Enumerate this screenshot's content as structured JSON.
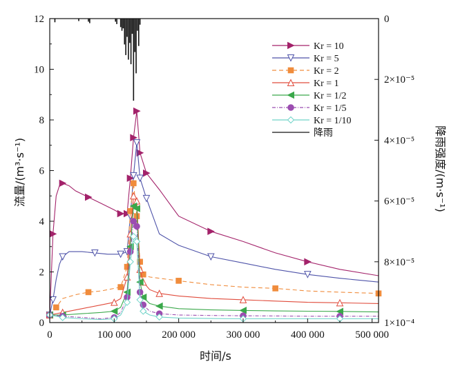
{
  "chart_data": {
    "type": "line",
    "title": "",
    "xlabel": "时间/s",
    "ylabel_left": "流量/(m³·s⁻¹)",
    "ylabel_right": "降雨强度/(m·s⁻¹)",
    "xlim": [
      0,
      510000
    ],
    "ylim_left": [
      0,
      12
    ],
    "ylim_right_inverted": [
      0,
      0.0001
    ],
    "x_tick_labels": [
      "0",
      "100 000",
      "200 000",
      "300 000",
      "400 000",
      "500 000"
    ],
    "y_left_tick_labels": [
      "0",
      "2",
      "4",
      "6",
      "8",
      "10",
      "12"
    ],
    "y_right_tick_labels": [
      "0",
      "2×10⁻⁵",
      "4×10⁻⁵",
      "6×10⁻⁵",
      "8×10⁻⁵",
      "1×10⁻⁴"
    ],
    "legend_position": "top-right",
    "grid": false,
    "series": [
      {
        "name": "Kr = 10",
        "color": "#a3226a",
        "dash": "none",
        "marker": "triangle-right",
        "x": [
          0,
          5000,
          10000,
          15000,
          20000,
          30000,
          40000,
          60000,
          80000,
          100000,
          110000,
          120000,
          125000,
          130000,
          135000,
          140000,
          150000,
          170000,
          200000,
          250000,
          300000,
          350000,
          400000,
          450000,
          510000
        ],
        "y": [
          0.3,
          3.5,
          5.0,
          5.4,
          5.5,
          5.4,
          5.2,
          4.95,
          4.7,
          4.45,
          4.3,
          4.3,
          5.7,
          7.3,
          8.35,
          6.7,
          5.9,
          5.25,
          4.2,
          3.6,
          3.2,
          2.75,
          2.4,
          2.1,
          1.85
        ]
      },
      {
        "name": "Kr = 5",
        "color": "#4d52a8",
        "dash": "none",
        "marker": "triangle-down-open",
        "x": [
          0,
          5000,
          10000,
          15000,
          20000,
          30000,
          50000,
          70000,
          90000,
          100000,
          110000,
          120000,
          125000,
          130000,
          135000,
          140000,
          150000,
          170000,
          200000,
          250000,
          300000,
          350000,
          400000,
          450000,
          510000
        ],
        "y": [
          0.3,
          0.9,
          1.7,
          2.3,
          2.6,
          2.8,
          2.8,
          2.75,
          2.7,
          2.7,
          2.7,
          2.8,
          4.2,
          5.8,
          7.1,
          5.7,
          4.9,
          3.5,
          3.05,
          2.6,
          2.35,
          2.1,
          1.9,
          1.75,
          1.6
        ]
      },
      {
        "name": "Kr = 2",
        "color": "#f08c3c",
        "dash": "6,4",
        "marker": "square",
        "x": [
          0,
          10000,
          20000,
          40000,
          60000,
          80000,
          100000,
          110000,
          120000,
          125000,
          130000,
          135000,
          140000,
          145000,
          155000,
          170000,
          200000,
          250000,
          300000,
          350000,
          400000,
          450000,
          510000
        ],
        "y": [
          0.3,
          0.6,
          0.95,
          1.1,
          1.2,
          1.25,
          1.35,
          1.4,
          2.2,
          4.4,
          5.5,
          4.2,
          2.4,
          1.9,
          1.8,
          1.75,
          1.65,
          1.5,
          1.4,
          1.35,
          1.25,
          1.2,
          1.15
        ]
      },
      {
        "name": "Kr = 1",
        "color": "#e04a3a",
        "dash": "none",
        "marker": "triangle-up-open",
        "x": [
          0,
          20000,
          50000,
          80000,
          100000,
          110000,
          120000,
          125000,
          130000,
          135000,
          140000,
          145000,
          155000,
          170000,
          200000,
          250000,
          300000,
          350000,
          400000,
          450000,
          510000
        ],
        "y": [
          0.3,
          0.4,
          0.55,
          0.7,
          0.8,
          0.95,
          1.8,
          3.5,
          5.0,
          4.8,
          2.1,
          1.6,
          1.3,
          1.15,
          1.05,
          0.95,
          0.9,
          0.85,
          0.8,
          0.78,
          0.75
        ]
      },
      {
        "name": "Kr = 1/2",
        "color": "#3aa84a",
        "dash": "none",
        "marker": "triangle-left",
        "x": [
          0,
          20000,
          50000,
          80000,
          100000,
          110000,
          120000,
          125000,
          130000,
          135000,
          140000,
          145000,
          155000,
          170000,
          200000,
          250000,
          300000,
          350000,
          400000,
          450000,
          510000
        ],
        "y": [
          0.3,
          0.3,
          0.35,
          0.4,
          0.45,
          0.6,
          1.2,
          3.0,
          4.6,
          4.5,
          1.6,
          1.0,
          0.75,
          0.65,
          0.55,
          0.5,
          0.48,
          0.46,
          0.45,
          0.44,
          0.42
        ]
      },
      {
        "name": "Kr = 1/5",
        "color": "#9b4db0",
        "dash": "5,2,1,2",
        "marker": "circle",
        "x": [
          0,
          20000,
          50000,
          80000,
          100000,
          110000,
          120000,
          125000,
          130000,
          135000,
          140000,
          145000,
          155000,
          170000,
          200000,
          250000,
          300000,
          350000,
          400000,
          450000,
          510000
        ],
        "y": [
          0.3,
          0.25,
          0.2,
          0.15,
          0.2,
          0.4,
          1.0,
          2.8,
          4.0,
          3.8,
          1.2,
          0.7,
          0.45,
          0.35,
          0.3,
          0.28,
          0.27,
          0.26,
          0.25,
          0.25,
          0.25
        ]
      },
      {
        "name": "Kr = 1/10",
        "color": "#6fd3c8",
        "dash": "none",
        "marker": "diamond-open",
        "x": [
          0,
          20000,
          50000,
          80000,
          100000,
          110000,
          120000,
          125000,
          130000,
          135000,
          140000,
          145000,
          155000,
          170000,
          200000,
          250000,
          300000,
          350000,
          400000,
          450000,
          510000
        ],
        "y": [
          0.3,
          0.2,
          0.15,
          0.12,
          0.15,
          0.3,
          0.8,
          2.4,
          3.4,
          3.2,
          0.9,
          0.45,
          0.3,
          0.22,
          0.18,
          0.16,
          0.15,
          0.15,
          0.15,
          0.15,
          0.15
        ]
      },
      {
        "name": "降雨",
        "color": "#111111",
        "type": "bars-from-top",
        "axis": "right",
        "x": [
          8000,
          45000,
          60000,
          62000,
          102000,
          104000,
          110000,
          112000,
          114000,
          116000,
          118000,
          120000,
          122000,
          124000,
          126000,
          128000,
          130000,
          132000,
          134000,
          136000,
          138000,
          140000
        ],
        "y": [
          1.2e-06,
          8e-07,
          1e-06,
          1.5e-06,
          1e-06,
          1.8e-06,
          2.8e-06,
          4e-06,
          3.2e-06,
          8.5e-06,
          1.2e-05,
          6e-06,
          1.35e-05,
          8e-06,
          1.5e-05,
          5e-06,
          2.7e-05,
          1.1e-05,
          1.8e-05,
          4e-06,
          9e-06,
          2e-06
        ]
      }
    ]
  }
}
